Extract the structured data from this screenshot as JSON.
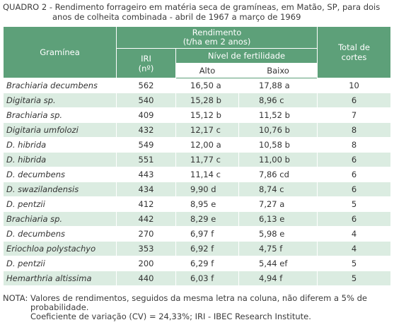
{
  "caption": {
    "line1": "QUADRO 2 - Rendimento forrageiro em matéria seca de gramíneas, em Matão, SP, para dois",
    "line2": "anos de colheita combinada - abril de 1967 a março de 1969"
  },
  "header": {
    "graminea": "Gramínea",
    "rendimento": "Rendimento",
    "rendimento_unit": "(t/ha em 2 anos)",
    "iri": "IRI",
    "iri_unit": "(nº)",
    "nivel": "Nível de fertilidade",
    "alto": "Alto",
    "baixo": "Baixo",
    "total": "Total de",
    "total2": "cortes"
  },
  "rows": [
    {
      "name": "Brachiaria decumbens",
      "iri": "562",
      "alto": "16,50 a",
      "baixo": "17,88 a",
      "cortes": "10"
    },
    {
      "name": "Digitaria sp.",
      "iri": "540",
      "alto": "15,28 b",
      "baixo": "8,96 c",
      "cortes": "6"
    },
    {
      "name": "Brachiaria sp.",
      "iri": "409",
      "alto": "15,12 b",
      "baixo": "11,52 b",
      "cortes": "7"
    },
    {
      "name": "Digitaria umfolozi",
      "iri": "432",
      "alto": "12,17 c",
      "baixo": "10,76 b",
      "cortes": "8"
    },
    {
      "name": "D. hibrida",
      "iri": "549",
      "alto": "12,00 a",
      "baixo": "10,58 b",
      "cortes": "8"
    },
    {
      "name": "D. hibrida",
      "iri": "551",
      "alto": "11,77 c",
      "baixo": "11,00 b",
      "cortes": "6"
    },
    {
      "name": "D. decumbens",
      "iri": "443",
      "alto": "11,14 c",
      "baixo": "7,86 cd",
      "cortes": "6"
    },
    {
      "name": "D. swazilandensis",
      "iri": "434",
      "alto": "9,90 d",
      "baixo": "8,74 c",
      "cortes": "6"
    },
    {
      "name": "D. pentzii",
      "iri": "412",
      "alto": "8,95 e",
      "baixo": "7,27 a",
      "cortes": "5"
    },
    {
      "name": "Brachiaria sp.",
      "iri": "442",
      "alto": "8,29 e",
      "baixo": "6,13 e",
      "cortes": "6"
    },
    {
      "name": "D. decumbens",
      "iri": "270",
      "alto": "6,97 f",
      "baixo": "5,98 e",
      "cortes": "4"
    },
    {
      "name": "Eriochloa polystachyo",
      "iri": "353",
      "alto": "6,92 f",
      "baixo": "4,75 f",
      "cortes": "4"
    },
    {
      "name": "D. pentzii",
      "iri": "200",
      "alto": "6,29 f",
      "baixo": "5,44 ef",
      "cortes": "5"
    },
    {
      "name": "Hemarthria altissima",
      "iri": "440",
      "alto": "6,03 f",
      "baixo": "4,94 f",
      "cortes": "5"
    }
  ],
  "note": {
    "line1": "NOTA: Valores de rendimentos, seguidos da mesma letra na coluna, não diferem a 5% de",
    "line2": "probabilidade.",
    "line3": "Coeficiente de variação (CV) = 24,33%; IRI - IBEC Research Institute."
  },
  "colors": {
    "header_green": "#5da079",
    "stripe_green": "#dbece1"
  }
}
